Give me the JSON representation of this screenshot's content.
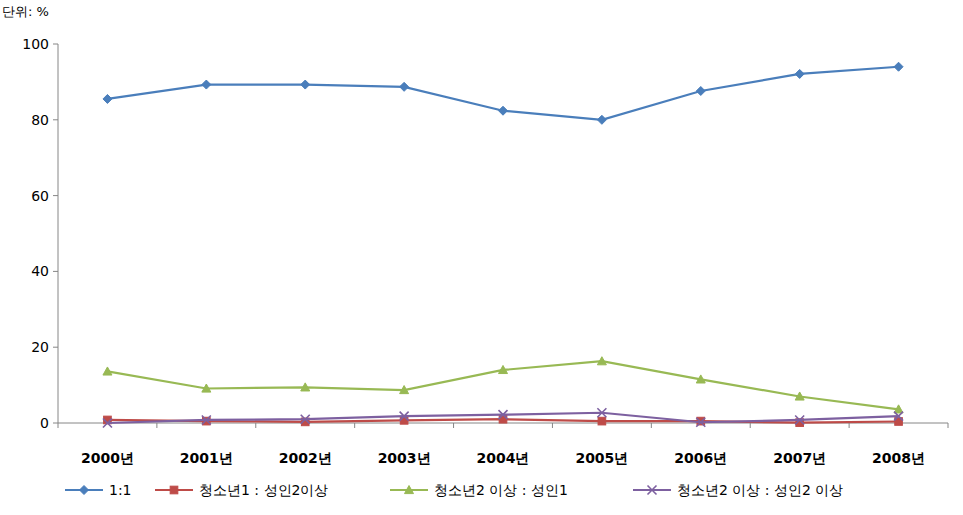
{
  "chart_data": {
    "type": "line",
    "y_label": "단위: %",
    "categories": [
      "2000년",
      "2001년",
      "2002년",
      "2003년",
      "2004년",
      "2005년",
      "2006년",
      "2007년",
      "2008년"
    ],
    "series": [
      {
        "name": "1:1",
        "color": "#4a7ebb",
        "marker": "diamond",
        "line_style": "solid",
        "values": [
          85.5,
          89.3,
          89.3,
          88.7,
          82.4,
          80.0,
          87.6,
          92.1,
          94.0
        ]
      },
      {
        "name": "청소년1 : 성인2이상",
        "color": "#be4b48",
        "marker": "square",
        "line_style": "solid",
        "values": [
          0.8,
          0.5,
          0.3,
          0.7,
          1.0,
          0.5,
          0.5,
          0.1,
          0.4
        ]
      },
      {
        "name": "청소년2 이상 : 성인1",
        "color": "#98b954",
        "marker": "triangle",
        "line_style": "solid",
        "values": [
          13.6,
          9.1,
          9.4,
          8.7,
          14.0,
          16.3,
          11.5,
          7.0,
          3.6
        ]
      },
      {
        "name": "청소년2 이상 : 성인2 이상",
        "color": "#7d60a0",
        "marker": "x",
        "line_style": "solid",
        "values": [
          0.0,
          0.8,
          1.0,
          1.8,
          2.2,
          2.7,
          0.2,
          0.8,
          1.8
        ]
      }
    ],
    "ylim": [
      0,
      100
    ],
    "yticks": [
      0,
      20,
      40,
      60,
      80,
      100
    ],
    "grid": false,
    "legend": "bottom"
  }
}
